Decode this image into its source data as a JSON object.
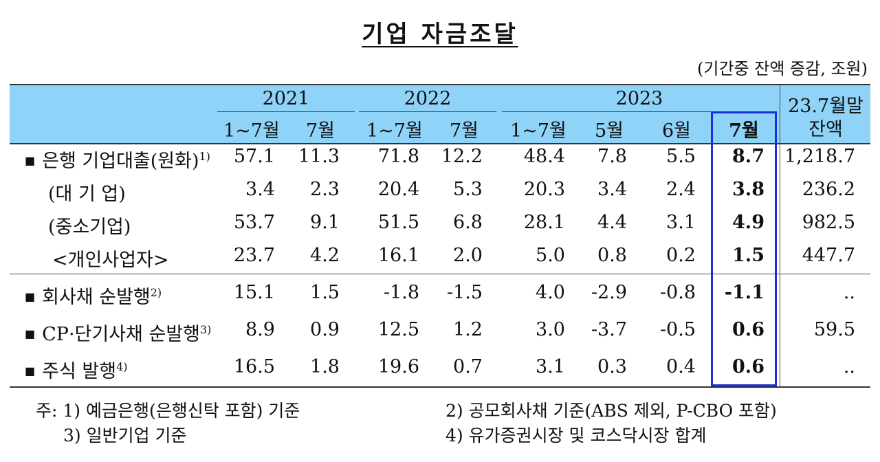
{
  "title": "기업 자금조달",
  "unit": "(기간중 잔액 증감, 조원)",
  "header": {
    "years": [
      "2021",
      "2022",
      "2023"
    ],
    "subs": [
      "1~7월",
      "7월",
      "1~7월",
      "7월",
      "1~7월",
      "5월",
      "6월",
      "7월"
    ],
    "balance_line1": "23.7월말",
    "balance_line2": "잔액"
  },
  "rows": [
    {
      "label": "은행 기업대출(원화)",
      "sup": "1)",
      "bullet": "■",
      "values": [
        "57.1",
        "11.3",
        "71.8",
        "12.2",
        "48.4",
        "7.8",
        "5.5",
        "8.7",
        "1,218.7"
      ]
    },
    {
      "label": "(대 기 업)",
      "sup": "",
      "bullet": "",
      "values": [
        "3.4",
        "2.3",
        "20.4",
        "5.3",
        "20.3",
        "3.4",
        "2.4",
        "3.8",
        "236.2"
      ]
    },
    {
      "label": "(중소기업)",
      "sup": "",
      "bullet": "",
      "values": [
        "53.7",
        "9.1",
        "51.5",
        "6.8",
        "28.1",
        "4.4",
        "3.1",
        "4.9",
        "982.5"
      ]
    },
    {
      "label": "<개인사업자>",
      "sup": "",
      "bullet": "",
      "values": [
        "23.7",
        "4.2",
        "16.1",
        "2.0",
        "5.0",
        "0.8",
        "0.2",
        "1.5",
        "447.7"
      ]
    },
    {
      "label": "회사채 순발행",
      "sup": "2)",
      "bullet": "■",
      "values": [
        "15.1",
        "1.5",
        "-1.8",
        "-1.5",
        "4.0",
        "-2.9",
        "-0.8",
        "-1.1",
        ".."
      ]
    },
    {
      "label": "CP·단기사채 순발행",
      "sup": "3)",
      "bullet": "■",
      "values": [
        "8.9",
        "0.9",
        "12.5",
        "1.2",
        "3.0",
        "-3.7",
        "-0.5",
        "0.6",
        "59.5"
      ]
    },
    {
      "label": "주식 발행",
      "sup": "4)",
      "bullet": "■",
      "values": [
        "16.5",
        "1.8",
        "19.6",
        "0.7",
        "3.1",
        "0.3",
        "0.4",
        "0.6",
        ".."
      ]
    }
  ],
  "notes": [
    "주: 1) 예금은행(은행신탁 포함) 기준",
    "3) 일반기업 기준",
    "2) 공모회사채 기준(ABS 제외, P-CBO 포함)",
    "4) 유가증권시장 및 코스닥시장 합계"
  ]
}
